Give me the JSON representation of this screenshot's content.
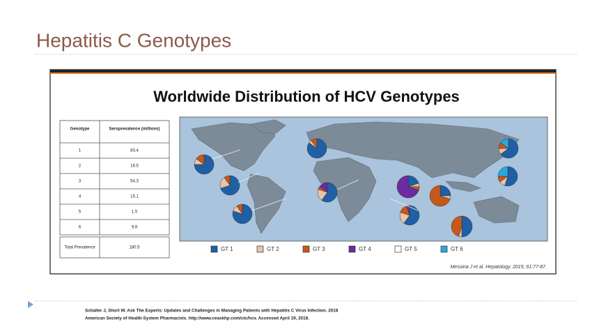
{
  "title": "Hepatitis C Genotypes",
  "figure": {
    "title": "Worldwide Distribution of HCV Genotypes",
    "table": {
      "header": [
        "Genotype",
        "Seroprevalence (millions)"
      ],
      "rows": [
        [
          "1",
          "83.4"
        ],
        [
          "2",
          "16.5"
        ],
        [
          "3",
          "54.3"
        ],
        [
          "4",
          "15.1"
        ],
        [
          "5",
          "1.5"
        ],
        [
          "6",
          "9.8"
        ]
      ],
      "total": [
        "Total Prevalence",
        "180.5"
      ]
    },
    "legend": [
      "GT 1",
      "GT 2",
      "GT 3",
      "GT 4",
      "GT 5",
      "GT 6"
    ],
    "citation": "Messina J et al. Hepatology. 2015; 61:77-87."
  },
  "footer": {
    "reference": [
      "Schaller J, Short W. Ask The Experts: Updates and Challenges in Managing Patients with Hepatitis C Virus Infection. 2018",
      "American Society of Health-System Pharmacists. http://www.ceaskhp.com/ctc/hcv. Accessed April 19, 2018."
    ]
  }
}
